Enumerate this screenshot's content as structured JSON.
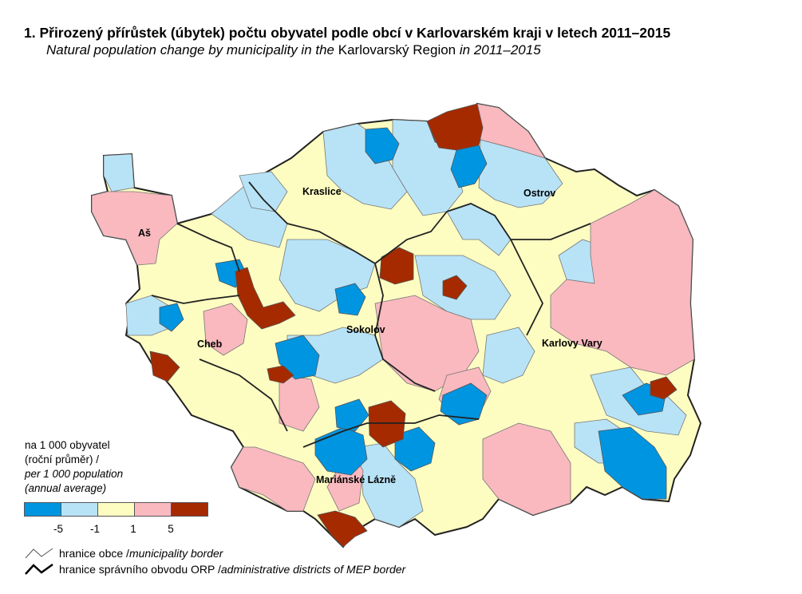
{
  "title": {
    "cz": "1. Přirozený přírůstek (úbytek) počtu obyvatel podle obcí v Karlovarském kraji v letech 2011–2015",
    "en_italic": "Natural population change by municipality in the",
    "en_plain": " Karlovarský Region",
    "en_italic2": " in 2011–2015"
  },
  "cities": [
    "Kraslice",
    "Ostrov",
    "Aš",
    "Sokolov",
    "Cheb",
    "Karlovy Vary",
    "Mariánské Lázně"
  ],
  "legend": {
    "line1": "na 1 000 obyvatel",
    "line2": "(roční průměr) /",
    "line3": "per 1 000 population",
    "line4": "(annual average)",
    "colors": [
      "#0095e0",
      "#b8e3f7",
      "#fdfdc2",
      "#f9b9bf",
      "#a52a00"
    ],
    "ticks": [
      "-5",
      "-1",
      "1",
      "5"
    ]
  },
  "borders": {
    "municipality_cz": "hranice obce / ",
    "municipality_en": "municipality border",
    "orp_cz": "hranice správního obvodu ORP / ",
    "orp_en": "administrative districts of MEP border"
  }
}
